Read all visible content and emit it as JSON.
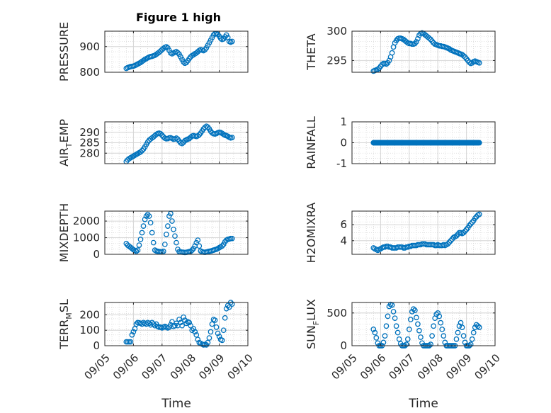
{
  "figure_title": "Figure 1 high",
  "colors": {
    "marker": "#0072BD",
    "axes": "#262626",
    "grid": "#d6d6d6"
  },
  "chart_data": [
    {
      "type": "scatter",
      "title": "Figure 1 high",
      "ylabel": "PRESSURE",
      "ylim": [
        800,
        960
      ],
      "yticks": [
        "800",
        "900"
      ],
      "ytick_values": [
        800,
        900
      ],
      "x": [
        5.75,
        5.8,
        5.85,
        5.9,
        5.95,
        6.0,
        6.05,
        6.1,
        6.15,
        6.2,
        6.25,
        6.3,
        6.35,
        6.4,
        6.45,
        6.5,
        6.55,
        6.6,
        6.65,
        6.7,
        6.75,
        6.8,
        6.85,
        6.9,
        6.95,
        7.0,
        7.05,
        7.1,
        7.15,
        7.2,
        7.25,
        7.3,
        7.35,
        7.4,
        7.45,
        7.5,
        7.55,
        7.6,
        7.65,
        7.7,
        7.75,
        7.8,
        7.85,
        7.9,
        7.95,
        8.0,
        8.05,
        8.1,
        8.15,
        8.2,
        8.25,
        8.3,
        8.35,
        8.4,
        8.45,
        8.5,
        8.55,
        8.6,
        8.65,
        8.7,
        8.75,
        8.8,
        8.85,
        8.9,
        8.95,
        9.0,
        9.05,
        9.1,
        9.15,
        9.2,
        9.25,
        9.3,
        9.35,
        9.4,
        9.45
      ],
      "y": [
        815,
        818,
        820,
        822,
        823,
        824,
        826,
        829,
        832,
        835,
        838,
        842,
        846,
        850,
        853,
        856,
        859,
        861,
        862,
        864,
        866,
        870,
        874,
        878,
        883,
        888,
        893,
        897,
        899,
        895,
        885,
        875,
        872,
        875,
        878,
        880,
        876,
        870,
        860,
        850,
        840,
        835,
        838,
        845,
        853,
        860,
        865,
        868,
        872,
        875,
        880,
        885,
        888,
        886,
        884,
        888,
        895,
        905,
        915,
        925,
        935,
        945,
        950,
        950,
        948,
        940,
        932,
        928,
        930,
        938,
        945,
        935,
        920,
        917,
        920
      ]
    },
    {
      "type": "scatter",
      "ylabel": "THETA",
      "ylim": [
        293,
        300
      ],
      "yticks": [
        "295",
        "300"
      ],
      "ytick_values": [
        295,
        300
      ],
      "x": [
        5.75,
        5.8,
        5.85,
        5.9,
        5.95,
        6.0,
        6.05,
        6.1,
        6.15,
        6.2,
        6.25,
        6.3,
        6.35,
        6.4,
        6.45,
        6.5,
        6.55,
        6.6,
        6.65,
        6.7,
        6.75,
        6.8,
        6.85,
        6.9,
        6.95,
        7.0,
        7.05,
        7.1,
        7.15,
        7.2,
        7.25,
        7.3,
        7.35,
        7.4,
        7.45,
        7.5,
        7.55,
        7.6,
        7.65,
        7.7,
        7.75,
        7.8,
        7.85,
        7.9,
        7.95,
        8.0,
        8.05,
        8.1,
        8.15,
        8.2,
        8.25,
        8.3,
        8.35,
        8.4,
        8.45,
        8.5,
        8.55,
        8.6,
        8.65,
        8.7,
        8.75,
        8.8,
        8.85,
        8.9,
        8.95,
        9.0,
        9.05,
        9.1,
        9.15,
        9.2,
        9.25,
        9.3,
        9.35,
        9.4,
        9.45
      ],
      "y": [
        293.2,
        293.3,
        293.4,
        293.5,
        293.7,
        294.0,
        294.3,
        294.5,
        294.5,
        294.4,
        294.6,
        295.0,
        295.6,
        296.3,
        297.3,
        298.0,
        298.4,
        298.7,
        298.8,
        298.8,
        298.7,
        298.6,
        298.4,
        298.2,
        298.0,
        297.9,
        297.9,
        297.8,
        297.8,
        297.9,
        298.2,
        298.7,
        299.3,
        299.6,
        299.7,
        299.6,
        299.4,
        299.2,
        299.0,
        298.8,
        298.6,
        298.3,
        298.0,
        297.8,
        297.7,
        297.6,
        297.5,
        297.5,
        297.4,
        297.4,
        297.3,
        297.2,
        297.1,
        297.0,
        296.8,
        296.7,
        296.6,
        296.5,
        296.4,
        296.3,
        296.2,
        296.1,
        296.0,
        295.8,
        295.6,
        295.3,
        295.0,
        294.7,
        294.5,
        294.6,
        294.8,
        294.9,
        294.8,
        294.7,
        294.6
      ]
    },
    {
      "type": "scatter",
      "ylabel": "AIR_TEMP",
      "ylim": [
        275,
        295
      ],
      "yticks": [
        "280",
        "285",
        "290"
      ],
      "ytick_values": [
        280,
        285,
        290
      ],
      "x": [
        5.75,
        5.8,
        5.85,
        5.9,
        5.95,
        6.0,
        6.05,
        6.1,
        6.15,
        6.2,
        6.25,
        6.3,
        6.35,
        6.4,
        6.45,
        6.5,
        6.55,
        6.6,
        6.65,
        6.7,
        6.75,
        6.8,
        6.85,
        6.9,
        6.95,
        7.0,
        7.05,
        7.1,
        7.15,
        7.2,
        7.25,
        7.3,
        7.35,
        7.4,
        7.45,
        7.5,
        7.55,
        7.6,
        7.65,
        7.7,
        7.75,
        7.8,
        7.85,
        7.9,
        7.95,
        8.0,
        8.05,
        8.1,
        8.15,
        8.2,
        8.25,
        8.3,
        8.35,
        8.4,
        8.45,
        8.5,
        8.55,
        8.6,
        8.65,
        8.7,
        8.75,
        8.8,
        8.85,
        8.9,
        8.95,
        9.0,
        9.05,
        9.1,
        9.15,
        9.2,
        9.25,
        9.3,
        9.35,
        9.4,
        9.45
      ],
      "y": [
        276.0,
        276.8,
        277.4,
        277.8,
        278.2,
        278.6,
        279.0,
        279.4,
        279.8,
        280.2,
        280.6,
        281.2,
        282.0,
        283.0,
        284.2,
        285.3,
        286.2,
        286.8,
        287.3,
        287.8,
        288.4,
        289.0,
        289.4,
        289.6,
        289.3,
        288.6,
        287.8,
        287.2,
        286.9,
        287.0,
        287.3,
        287.4,
        287.1,
        286.7,
        286.8,
        287.2,
        286.7,
        285.8,
        284.9,
        284.6,
        285.2,
        286.0,
        286.4,
        286.7,
        287.0,
        287.6,
        288.2,
        288.4,
        288.2,
        288.0,
        288.3,
        288.8,
        289.6,
        290.6,
        291.6,
        292.4,
        292.9,
        292.5,
        291.6,
        290.5,
        289.7,
        289.3,
        289.2,
        289.4,
        289.8,
        290.0,
        289.9,
        289.5,
        289.0,
        288.6,
        288.4,
        288.1,
        287.6,
        287.3,
        287.5
      ]
    },
    {
      "type": "scatter",
      "ylabel": "RAINFALL",
      "ylim": [
        -1,
        1
      ],
      "yticks": [
        "-1",
        "0",
        "1"
      ],
      "ytick_values": [
        -1,
        0,
        1
      ],
      "x_range": [
        5.75,
        9.45
      ],
      "x_step": 0.025,
      "constant_y": 0
    },
    {
      "type": "scatter",
      "ylabel": "MIXDEPTH",
      "ylim": [
        0,
        2600
      ],
      "yticks": [
        "0",
        "1000",
        "2000"
      ],
      "ytick_values": [
        0,
        1000,
        2000
      ],
      "x": [
        5.75,
        5.8,
        5.85,
        5.9,
        5.95,
        6.0,
        6.05,
        6.1,
        6.15,
        6.2,
        6.25,
        6.3,
        6.35,
        6.4,
        6.45,
        6.5,
        6.55,
        6.6,
        6.65,
        6.7,
        6.75,
        6.8,
        6.85,
        6.9,
        6.95,
        7.0,
        7.05,
        7.1,
        7.15,
        7.2,
        7.25,
        7.3,
        7.35,
        7.4,
        7.45,
        7.5,
        7.55,
        7.6,
        7.65,
        7.7,
        7.75,
        7.8,
        7.85,
        7.9,
        7.95,
        8.0,
        8.05,
        8.1,
        8.15,
        8.2,
        8.25,
        8.3,
        8.35,
        8.4,
        8.45,
        8.5,
        8.55,
        8.6,
        8.65,
        8.7,
        8.75,
        8.8,
        8.85,
        8.9,
        8.95,
        9.0,
        9.05,
        9.1,
        9.15,
        9.2,
        9.25,
        9.3,
        9.35,
        9.4,
        9.45
      ],
      "y": [
        650,
        550,
        480,
        420,
        350,
        280,
        230,
        180,
        250,
        550,
        900,
        1300,
        1700,
        2100,
        2300,
        2400,
        2300,
        1900,
        1300,
        700,
        250,
        200,
        180,
        160,
        150,
        140,
        180,
        600,
        1200,
        1700,
        2300,
        2450,
        2000,
        1500,
        1100,
        700,
        300,
        160,
        140,
        130,
        120,
        110,
        120,
        140,
        160,
        180,
        250,
        350,
        500,
        700,
        850,
        500,
        200,
        150,
        130,
        120,
        140,
        160,
        180,
        200,
        220,
        250,
        280,
        300,
        350,
        400,
        450,
        500,
        600,
        750,
        850,
        900,
        920,
        950,
        950
      ]
    },
    {
      "type": "scatter",
      "ylabel": "H2OMIXRA",
      "ylim": [
        2.3,
        7.7
      ],
      "yticks": [
        "4",
        "6"
      ],
      "ytick_values": [
        4,
        6
      ],
      "x": [
        5.75,
        5.8,
        5.85,
        5.9,
        5.95,
        6.0,
        6.05,
        6.1,
        6.15,
        6.2,
        6.25,
        6.3,
        6.35,
        6.4,
        6.45,
        6.5,
        6.55,
        6.6,
        6.65,
        6.7,
        6.75,
        6.8,
        6.85,
        6.9,
        6.95,
        7.0,
        7.05,
        7.1,
        7.15,
        7.2,
        7.25,
        7.3,
        7.35,
        7.4,
        7.45,
        7.5,
        7.55,
        7.6,
        7.65,
        7.7,
        7.75,
        7.8,
        7.85,
        7.9,
        7.95,
        8.0,
        8.05,
        8.1,
        8.15,
        8.2,
        8.25,
        8.3,
        8.35,
        8.4,
        8.45,
        8.5,
        8.55,
        8.6,
        8.65,
        8.7,
        8.75,
        8.8,
        8.85,
        8.9,
        8.95,
        9.0,
        9.05,
        9.1,
        9.15,
        9.2,
        9.25,
        9.3,
        9.35,
        9.4,
        9.45
      ],
      "y": [
        3.1,
        3.0,
        2.9,
        2.8,
        2.9,
        3.0,
        3.1,
        3.2,
        3.2,
        3.3,
        3.3,
        3.2,
        3.2,
        3.1,
        3.1,
        3.1,
        3.1,
        3.2,
        3.2,
        3.2,
        3.2,
        3.1,
        3.1,
        3.2,
        3.2,
        3.3,
        3.3,
        3.4,
        3.4,
        3.4,
        3.4,
        3.5,
        3.5,
        3.5,
        3.6,
        3.6,
        3.6,
        3.5,
        3.5,
        3.5,
        3.5,
        3.5,
        3.5,
        3.4,
        3.4,
        3.5,
        3.4,
        3.4,
        3.4,
        3.5,
        3.4,
        3.5,
        3.6,
        3.8,
        4.0,
        4.2,
        4.4,
        4.5,
        4.6,
        4.8,
        5.0,
        5.0,
        4.9,
        5.0,
        5.2,
        5.4,
        5.6,
        5.9,
        6.1,
        6.3,
        6.5,
        6.8,
        7.0,
        7.2,
        7.3
      ]
    },
    {
      "type": "scatter",
      "ylabel": "TERR_MSL",
      "ylim": [
        0,
        280
      ],
      "yticks": [
        "0",
        "100",
        "200"
      ],
      "ytick_values": [
        0,
        100,
        200
      ],
      "x": [
        5.75,
        5.8,
        5.85,
        5.9,
        5.95,
        6.0,
        6.05,
        6.1,
        6.15,
        6.2,
        6.25,
        6.3,
        6.35,
        6.4,
        6.45,
        6.5,
        6.55,
        6.6,
        6.65,
        6.7,
        6.75,
        6.8,
        6.85,
        6.9,
        6.95,
        7.0,
        7.05,
        7.1,
        7.15,
        7.2,
        7.25,
        7.3,
        7.35,
        7.4,
        7.45,
        7.5,
        7.55,
        7.6,
        7.65,
        7.7,
        7.75,
        7.8,
        7.85,
        7.9,
        7.95,
        8.0,
        8.05,
        8.1,
        8.15,
        8.2,
        8.25,
        8.3,
        8.35,
        8.4,
        8.45,
        8.5,
        8.55,
        8.6,
        8.65,
        8.7,
        8.75,
        8.8,
        8.85,
        8.9,
        8.95,
        9.0,
        9.05,
        9.1,
        9.15,
        9.2,
        9.25,
        9.3,
        9.35,
        9.4,
        9.45
      ],
      "y": [
        25,
        25,
        25,
        25,
        70,
        90,
        110,
        140,
        150,
        148,
        145,
        140,
        150,
        145,
        140,
        150,
        145,
        135,
        150,
        140,
        130,
        140,
        125,
        120,
        120,
        115,
        120,
        125,
        120,
        115,
        120,
        135,
        155,
        125,
        130,
        145,
        130,
        170,
        150,
        130,
        185,
        165,
        145,
        155,
        150,
        130,
        100,
        110,
        90,
        70,
        40,
        20,
        15,
        10,
        5,
        8,
        5,
        20,
        50,
        90,
        140,
        170,
        165,
        120,
        80,
        60,
        40,
        35,
        100,
        180,
        240,
        260,
        250,
        280,
        270
      ]
    },
    {
      "type": "scatter",
      "ylabel": "SUN_FLUX",
      "ylim": [
        0,
        660
      ],
      "yticks": [
        "0",
        "500"
      ],
      "ytick_values": [
        0,
        500
      ],
      "x": [
        5.75,
        5.8,
        5.85,
        5.9,
        5.95,
        6.0,
        6.05,
        6.1,
        6.15,
        6.2,
        6.25,
        6.3,
        6.35,
        6.4,
        6.45,
        6.5,
        6.55,
        6.6,
        6.65,
        6.7,
        6.75,
        6.8,
        6.85,
        6.9,
        6.95,
        7.0,
        7.05,
        7.1,
        7.15,
        7.2,
        7.25,
        7.3,
        7.35,
        7.4,
        7.45,
        7.5,
        7.55,
        7.6,
        7.65,
        7.7,
        7.75,
        7.8,
        7.85,
        7.9,
        7.95,
        8.0,
        8.05,
        8.1,
        8.15,
        8.2,
        8.25,
        8.3,
        8.35,
        8.4,
        8.45,
        8.5,
        8.55,
        8.6,
        8.65,
        8.7,
        8.75,
        8.8,
        8.85,
        8.9,
        8.95,
        9.0,
        9.05,
        9.1,
        9.15,
        9.2,
        9.25,
        9.3,
        9.35,
        9.4,
        9.45
      ],
      "y": [
        250,
        200,
        120,
        40,
        0,
        0,
        0,
        50,
        150,
        300,
        450,
        600,
        630,
        620,
        520,
        420,
        300,
        200,
        100,
        30,
        0,
        0,
        0,
        20,
        100,
        250,
        400,
        520,
        560,
        540,
        430,
        330,
        230,
        130,
        40,
        0,
        0,
        0,
        0,
        0,
        20,
        150,
        300,
        420,
        480,
        500,
        450,
        350,
        250,
        150,
        50,
        0,
        0,
        0,
        0,
        0,
        0,
        0,
        100,
        200,
        300,
        350,
        280,
        150,
        50,
        0,
        0,
        0,
        20,
        100,
        200,
        280,
        320,
        300,
        280
      ]
    }
  ],
  "xticks": [
    "09/05",
    "09/06",
    "09/07",
    "09/08",
    "09/09",
    "09/10"
  ],
  "xtick_values": [
    5,
    6,
    7,
    8,
    9,
    10
  ],
  "xlim": [
    5,
    10
  ],
  "xlabel": "Time"
}
